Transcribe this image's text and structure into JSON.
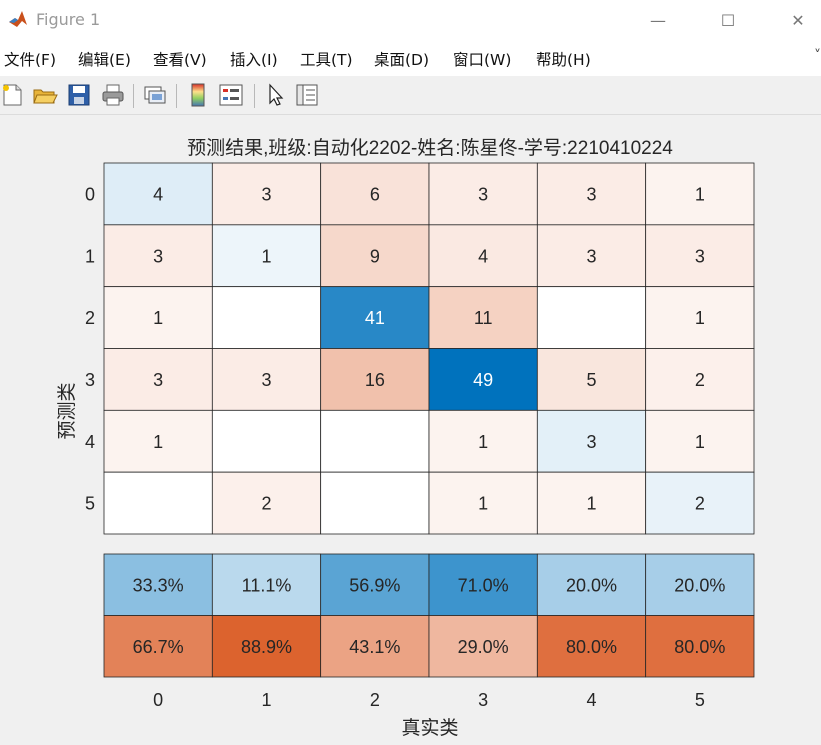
{
  "window": {
    "title": "Figure 1",
    "minimize_glyph": "—",
    "maximize_glyph": "☐",
    "close_glyph": "✕"
  },
  "menu": {
    "items": [
      "文件(F)",
      "编辑(E)",
      "查看(V)",
      "插入(I)",
      "工具(T)",
      "桌面(D)",
      "窗口(W)",
      "帮助(H)"
    ],
    "overflow_glyph": "˅"
  },
  "toolbar": {
    "icons": [
      "new-figure-icon",
      "open-file-icon",
      "save-icon",
      "print-icon",
      "link-axes-icon",
      "colorbar-icon",
      "legend-icon",
      "pointer-icon",
      "property-inspector-icon"
    ]
  },
  "chart_data": {
    "type": "heatmap",
    "title": "预测结果,班级:自动化2202-姓名:陈星佟-学号:2210410224",
    "xlabel": "真实类",
    "ylabel": "预测类",
    "categories": [
      "0",
      "1",
      "2",
      "3",
      "4",
      "5"
    ],
    "matrix": [
      [
        4,
        3,
        6,
        3,
        3,
        1
      ],
      [
        3,
        1,
        9,
        4,
        3,
        3
      ],
      [
        1,
        0,
        41,
        11,
        0,
        1
      ],
      [
        3,
        3,
        16,
        49,
        5,
        2
      ],
      [
        1,
        0,
        0,
        1,
        3,
        1
      ],
      [
        0,
        2,
        0,
        1,
        1,
        2
      ]
    ],
    "column_summary": {
      "correct": [
        "33.3%",
        "11.1%",
        "56.9%",
        "71.0%",
        "20.0%",
        "20.0%"
      ],
      "incorrect": [
        "66.7%",
        "88.9%",
        "43.1%",
        "29.0%",
        "80.0%",
        "80.0%"
      ]
    },
    "colors": {
      "diagonal": "#0072bd",
      "off_diagonal": "#d95319",
      "summary_correct": "#0072bd",
      "summary_incorrect": "#d95319"
    }
  }
}
